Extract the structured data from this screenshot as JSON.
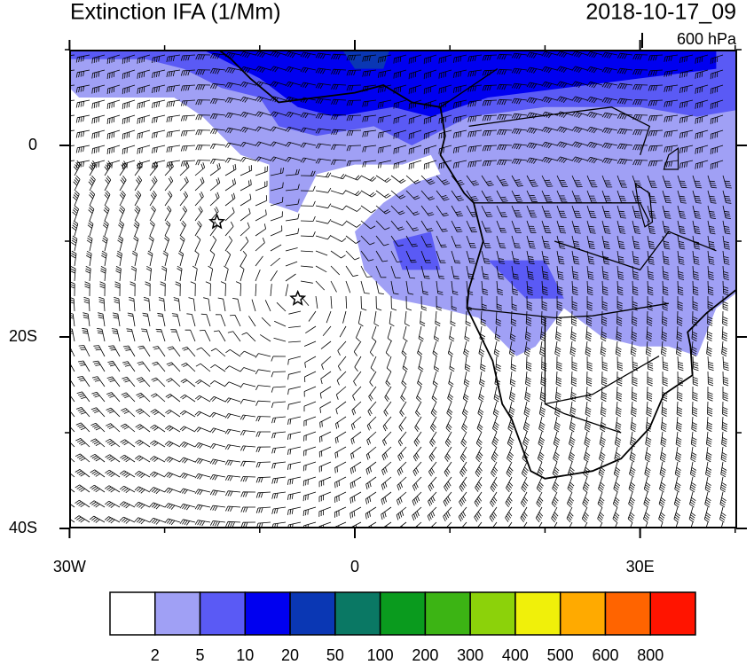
{
  "header": {
    "title": "Extinction IFA (1/Mm)",
    "time": "2018-10-17_09",
    "level": "600 hPa"
  },
  "map": {
    "lat_labels": [
      {
        "value": 0,
        "label": "0"
      },
      {
        "value": -20,
        "label": "20S"
      },
      {
        "value": -40,
        "label": "40S"
      }
    ],
    "lon_labels": [
      {
        "value": -30,
        "label": "30W"
      },
      {
        "value": 0,
        "label": "0"
      },
      {
        "value": 30,
        "label": "30E"
      }
    ]
  },
  "colorbar": {
    "colors": [
      "#ffffff",
      "#a0a0f5",
      "#5a5af5",
      "#0000f0",
      "#0a37b4",
      "#0a7864",
      "#0a9b1e",
      "#3cb414",
      "#8cd20a",
      "#f0f00a",
      "#ffaa00",
      "#ff6400",
      "#ff1400"
    ],
    "labels": [
      2,
      5,
      10,
      20,
      50,
      100,
      200,
      300,
      400,
      500,
      600,
      800
    ]
  }
}
